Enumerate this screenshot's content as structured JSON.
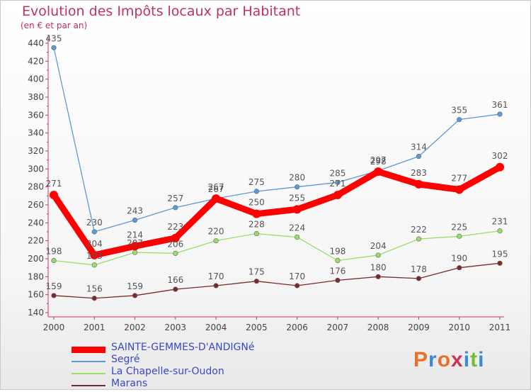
{
  "title": "Evolution des Impôts locaux par Habitant",
  "subtitle": "(en € et par an)",
  "logo": "Proxiti",
  "chart_data": {
    "type": "line",
    "x": [
      2000,
      2001,
      2002,
      2003,
      2004,
      2005,
      2006,
      2007,
      2008,
      2009,
      2010,
      2011
    ],
    "ylim": [
      140,
      440
    ],
    "yticks": [
      140,
      160,
      180,
      200,
      220,
      240,
      260,
      280,
      300,
      320,
      340,
      360,
      380,
      400,
      420,
      440
    ],
    "grid": false,
    "legend_position": "bottom-left",
    "series": [
      {
        "name": "SAINTE-GEMMES-D'ANDIGNé",
        "color": "#ff0000",
        "values": [
          271,
          204,
          214,
          223,
          267,
          250,
          255,
          271,
          297,
          283,
          277,
          302
        ]
      },
      {
        "name": "Segré",
        "color": "#5a9ad6",
        "values": [
          435,
          230,
          243,
          257,
          267,
          275,
          280,
          285,
          298,
          314,
          355,
          361
        ]
      },
      {
        "name": "La Chapelle-sur-Oudon",
        "color": "#99dd66",
        "values": [
          198,
          193,
          207,
          206,
          220,
          228,
          224,
          198,
          204,
          222,
          225,
          231
        ]
      },
      {
        "name": "Marans",
        "color": "#7a2a2a",
        "values": [
          159,
          156,
          159,
          166,
          170,
          175,
          170,
          176,
          180,
          178,
          190,
          195
        ]
      }
    ]
  }
}
